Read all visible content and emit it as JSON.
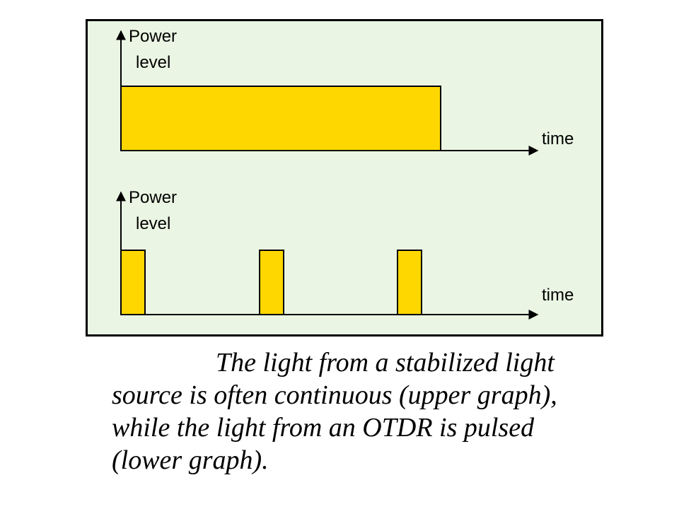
{
  "colors": {
    "panel_background": "#eaf5e3",
    "pulse_fill": "#ffd700",
    "outline": "#000000"
  },
  "upper_graph": {
    "y_label_line1": "Power",
    "y_label_line2": "level",
    "x_label": "time",
    "signal": "continuous"
  },
  "lower_graph": {
    "y_label_line1": "Power",
    "y_label_line2": "level",
    "x_label": "time",
    "signal": "pulsed",
    "pulse_count": 3
  },
  "caption": {
    "line1": "The light from a stabilized light",
    "line2": "source is often continuous (upper graph),",
    "line3": "while the light from an OTDR is pulsed",
    "line4": "(lower graph)."
  }
}
